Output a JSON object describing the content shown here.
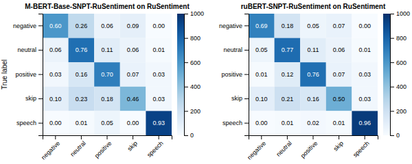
{
  "chart_data": [
    {
      "type": "heatmap",
      "title": "M-BERT-Base-SNPT-RuSentiment on RuSentiment",
      "ylabel": "True label",
      "categories": [
        "negative",
        "neutral",
        "positive",
        "skip",
        "speech"
      ],
      "values": [
        [
          0.6,
          0.26,
          0.06,
          0.09,
          0.0
        ],
        [
          0.06,
          0.76,
          0.11,
          0.06,
          0.01
        ],
        [
          0.03,
          0.16,
          0.7,
          0.07,
          0.03
        ],
        [
          0.1,
          0.23,
          0.18,
          0.46,
          0.03
        ],
        [
          0.0,
          0.01,
          0.05,
          0.0,
          0.93
        ]
      ],
      "value_labels": [
        [
          "0.60",
          "0.26",
          "0.06",
          "0.09",
          "0.00"
        ],
        [
          "0.06",
          "0.76",
          "0.11",
          "0.06",
          "0.01"
        ],
        [
          "0.03",
          "0.16",
          "0.70",
          "0.07",
          "0.03"
        ],
        [
          "0.10",
          "0.23",
          "0.18",
          "0.46",
          "0.03"
        ],
        [
          "0.00",
          "0.01",
          "0.05",
          "0.00",
          "0.93"
        ]
      ],
      "data_labels": true,
      "color": "Blues",
      "colorbar_range": [
        0,
        1
      ],
      "colorbar_ticks": [
        0,
        {
          "value": 0.2,
          "label": "200"
        },
        {
          "value": 0.4,
          "label": "400"
        },
        {
          "value": 0.6,
          "label": "600"
        },
        {
          "value": 0.8,
          "label": "800"
        },
        {
          "value": 1,
          "label": "1000"
        }
      ]
    },
    {
      "type": "heatmap",
      "title": "ruBERT-SNPT-RuSentiment on RuSentiment",
      "categories": [
        "negative",
        "neutral",
        "positive",
        "skip",
        "speech"
      ],
      "values": [
        [
          0.69,
          0.18,
          0.05,
          0.07,
          0.0
        ],
        [
          0.05,
          0.77,
          0.11,
          0.06,
          0.01
        ],
        [
          0.01,
          0.12,
          0.76,
          0.07,
          0.03
        ],
        [
          0.1,
          0.21,
          0.16,
          0.5,
          0.03
        ],
        [
          0.0,
          0.01,
          0.02,
          0.01,
          0.96
        ]
      ],
      "value_labels": [
        [
          "0.69",
          "0.18",
          "0.05",
          "0.07",
          "0.00"
        ],
        [
          "0.05",
          "0.77",
          "0.11",
          "0.06",
          "0.01"
        ],
        [
          "0.01",
          "0.12",
          "0.76",
          "0.07",
          "0.03"
        ],
        [
          "0.10",
          "0.21",
          "0.16",
          "0.50",
          "0.03"
        ],
        [
          "0.00",
          "0.01",
          "0.02",
          "0.01",
          "0.96"
        ]
      ],
      "data_labels": true,
      "color": "Blues",
      "colorbar_range": [
        0,
        1
      ],
      "colorbar_ticks": [
        0,
        {
          "value": 0.2,
          "label": "200"
        },
        {
          "value": 0.4,
          "label": "400"
        },
        {
          "value": 0.6,
          "label": "600"
        },
        {
          "value": 0.8,
          "label": "800"
        },
        {
          "value": 1,
          "label": "1000"
        }
      ]
    }
  ]
}
